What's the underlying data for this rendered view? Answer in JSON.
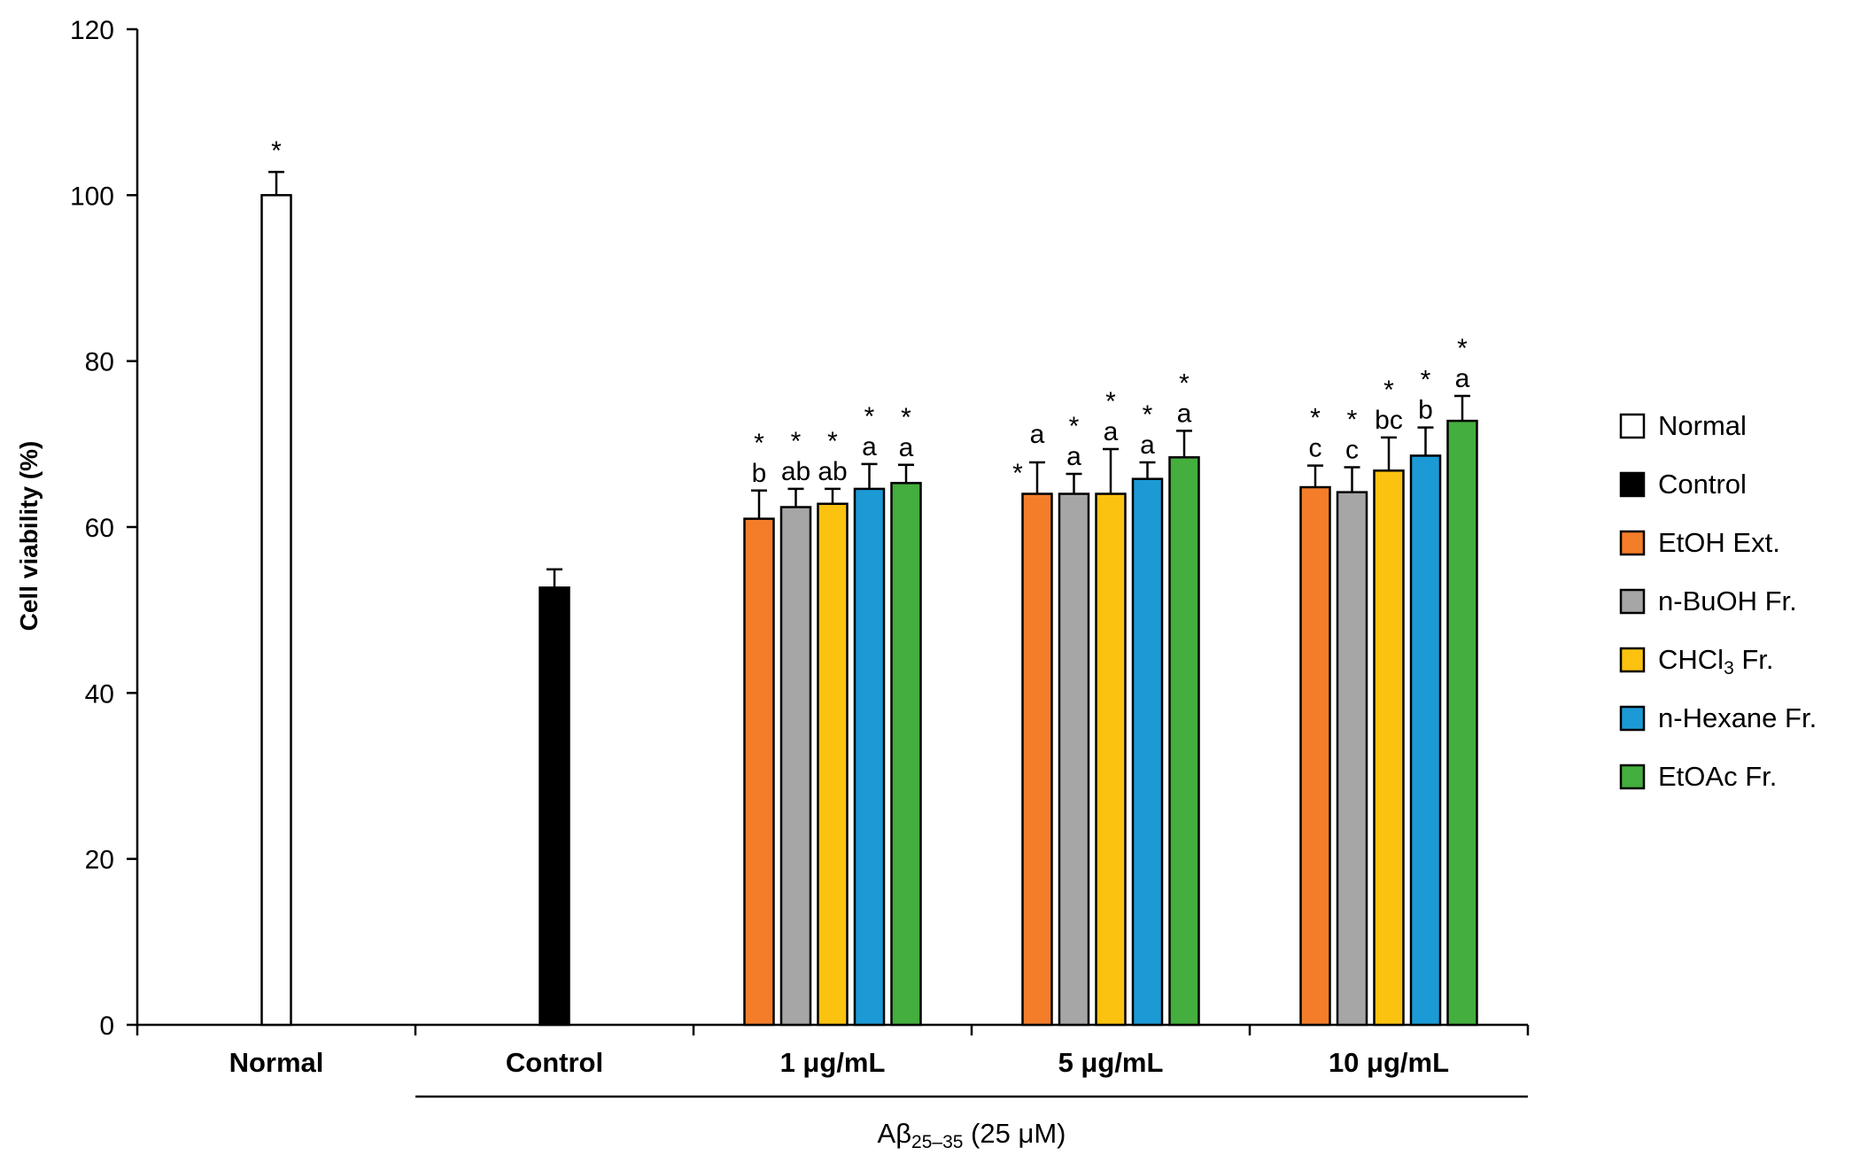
{
  "chart_data": {
    "type": "bar",
    "title": "",
    "xlabel": "",
    "ylabel": "Cell viability (%)",
    "ylim": [
      0,
      120
    ],
    "yticks": [
      0,
      20,
      40,
      60,
      80,
      100,
      120
    ],
    "grid": false,
    "legend_position": "right",
    "categories": [
      "Normal",
      "Control",
      "1 μg/mL",
      "5 μg/mL",
      "10 μg/mL"
    ],
    "group_label": {
      "prefix": "Aβ",
      "subscript": "25–35",
      "suffix": " (25 μM)"
    },
    "series": [
      {
        "name": "Normal",
        "color": "#ffffff",
        "values": [
          100.0,
          null,
          null,
          null,
          null
        ],
        "errors": [
          2.8,
          null,
          null,
          null,
          null
        ],
        "annotations": [
          [
            "*"
          ],
          null,
          null,
          null,
          null
        ]
      },
      {
        "name": "Control",
        "color": "#000000",
        "values": [
          null,
          52.7,
          null,
          null,
          null
        ],
        "errors": [
          null,
          2.2,
          null,
          null,
          null
        ],
        "annotations": [
          null,
          [],
          null,
          null,
          null
        ]
      },
      {
        "name": "EtOH Ext.",
        "color": "#f47d2a",
        "values": [
          null,
          null,
          61.0,
          64.0,
          64.8
        ],
        "errors": [
          null,
          null,
          3.4,
          3.8,
          2.6
        ],
        "annotations": [
          null,
          null,
          [
            "b",
            "*"
          ],
          [
            "*"
          ],
          [
            "c",
            "*"
          ]
        ]
      },
      {
        "name": "n-BuOH Fr.",
        "color": "#a6a6a6",
        "values": [
          null,
          null,
          62.4,
          64.0,
          64.2
        ],
        "errors": [
          null,
          null,
          2.2,
          2.4,
          3.0
        ],
        "annotations": [
          null,
          null,
          [
            "ab",
            "*"
          ],
          [
            "a",
            "*"
          ],
          [
            "c",
            "*"
          ]
        ]
      },
      {
        "name": "CHCl3 Fr.",
        "color": "#fbc20f",
        "values": [
          null,
          null,
          62.8,
          64.0,
          66.8
        ],
        "errors": [
          null,
          null,
          1.8,
          5.4,
          4.0
        ],
        "annotations": [
          null,
          null,
          [
            "ab",
            "*"
          ],
          [
            "a",
            "*"
          ],
          [
            "bc",
            "*"
          ]
        ]
      },
      {
        "name": "n-Hexane Fr.",
        "color": "#1c9ad6",
        "values": [
          null,
          null,
          64.6,
          65.8,
          68.6
        ],
        "errors": [
          null,
          null,
          3.0,
          2.0,
          3.4
        ],
        "annotations": [
          null,
          null,
          [
            "a",
            "*"
          ],
          [
            "a",
            "*"
          ],
          [
            "b",
            "*"
          ]
        ]
      },
      {
        "name": "EtOAc Fr.",
        "color": "#44ae3e",
        "values": [
          null,
          null,
          65.3,
          68.4,
          72.8
        ],
        "errors": [
          null,
          null,
          2.2,
          3.2,
          3.0
        ],
        "annotations": [
          null,
          null,
          [
            "a",
            "*"
          ],
          [
            "a",
            "*"
          ],
          [
            "a",
            "*"
          ]
        ]
      }
    ],
    "legend": [
      {
        "label": "Normal",
        "color": "#ffffff"
      },
      {
        "label": "Control",
        "color": "#000000"
      },
      {
        "label": "EtOH Ext.",
        "color": "#f47d2a"
      },
      {
        "label": "n-BuOH Fr.",
        "color": "#a6a6a6"
      },
      {
        "label": "CHCl3 Fr.",
        "color": "#fbc20f",
        "formula": {
          "before": "CHCl",
          "sub": "3",
          "after": " Fr."
        }
      },
      {
        "label": "n-Hexane Fr.",
        "color": "#1c9ad6"
      },
      {
        "label": "EtOAc Fr.",
        "color": "#44ae3e"
      }
    ]
  }
}
